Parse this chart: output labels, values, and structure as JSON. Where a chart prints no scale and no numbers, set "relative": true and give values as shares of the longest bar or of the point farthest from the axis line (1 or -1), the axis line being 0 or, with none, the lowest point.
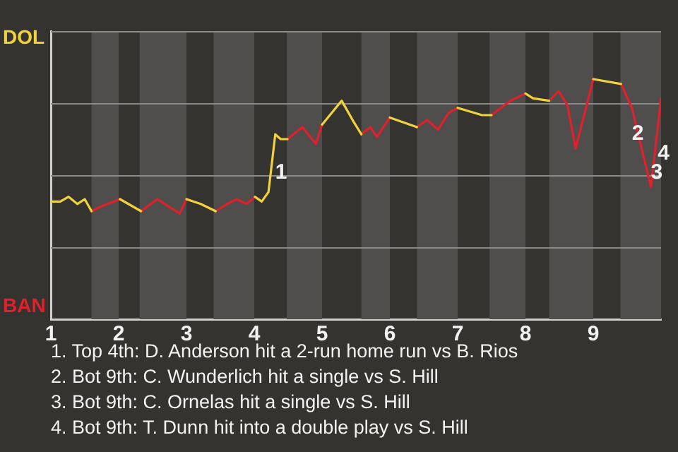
{
  "chart_data": {
    "type": "line",
    "relative": true,
    "xlim": [
      1,
      10
    ],
    "xticks": [
      1,
      2,
      3,
      4,
      5,
      6,
      7,
      8,
      9
    ],
    "grid": "y",
    "legend": "left",
    "marker": "none",
    "series": [
      {
        "name": "DOL",
        "color": "#f0d23c",
        "x": [
          1.0,
          1.14,
          1.26,
          1.39,
          1.5,
          1.6,
          1.8,
          2.02,
          2.33,
          2.6,
          3.0,
          3.21,
          3.43,
          3.7,
          4.01,
          4.11,
          4.21,
          4.31,
          4.39,
          4.49,
          4.7,
          5.0,
          5.29,
          5.47,
          5.58,
          5.8,
          6.0,
          6.4,
          6.7,
          7.0,
          7.36,
          7.5,
          7.7,
          8.0,
          8.11,
          8.35,
          8.6,
          9.0,
          9.41
        ],
        "values": [
          0.49,
          0.49,
          0.51,
          0.48,
          0.5,
          0.45,
          null,
          0.5,
          0.45,
          null,
          0.5,
          0.48,
          0.45,
          null,
          0.51,
          0.49,
          0.53,
          0.77,
          0.75,
          0.75,
          null,
          0.81,
          0.91,
          0.82,
          0.77,
          null,
          0.84,
          0.8,
          null,
          0.88,
          0.85,
          0.85,
          null,
          0.94,
          0.92,
          0.91,
          null,
          1,
          0.98
        ]
      },
      {
        "name": "BAN",
        "color": "#e0202a",
        "x": [
          1.6,
          1.74,
          2.02,
          2.2,
          2.33,
          2.57,
          2.9,
          3.0,
          3.3,
          3.43,
          3.6,
          3.74,
          3.89,
          4.01,
          4.3,
          4.49,
          4.71,
          4.91,
          5.0,
          5.3,
          5.58,
          5.71,
          5.81,
          6.0,
          6.2,
          6.4,
          6.55,
          6.71,
          6.87,
          7.0,
          7.2,
          7.5,
          7.78,
          8.0,
          8.2,
          8.35,
          8.49,
          8.62,
          8.74,
          9.0,
          9.2,
          9.41,
          9.57,
          9.85,
          10.0
        ],
        "values": [
          0.45,
          0.47,
          0.5,
          null,
          0.45,
          0.5,
          0.44,
          0.5,
          null,
          0.45,
          0.48,
          0.5,
          0.48,
          0.51,
          null,
          0.75,
          0.8,
          0.73,
          0.81,
          null,
          0.77,
          0.8,
          0.76,
          0.84,
          null,
          0.8,
          0.83,
          0.79,
          0.86,
          0.88,
          null,
          0.85,
          0.91,
          0.94,
          null,
          0.91,
          0.95,
          0.89,
          0.71,
          1,
          null,
          0.98,
          0.88,
          0.55,
          0.92
        ]
      }
    ],
    "bands": [
      {
        "axis": "x",
        "from": 1.6,
        "to": 2,
        "color": "#4f4e4c"
      },
      {
        "axis": "x",
        "from": 2.31,
        "to": 3,
        "color": "#4f4e4c"
      },
      {
        "axis": "x",
        "from": 3.4,
        "to": 4,
        "color": "#4f4e4c"
      },
      {
        "axis": "x",
        "from": 4.48,
        "to": 5,
        "color": "#4f4e4c"
      },
      {
        "axis": "x",
        "from": 5.58,
        "to": 6,
        "color": "#4f4e4c"
      },
      {
        "axis": "x",
        "from": 6.4,
        "to": 7,
        "color": "#4f4e4c"
      },
      {
        "axis": "x",
        "from": 7.47,
        "to": 8,
        "color": "#4f4e4c"
      },
      {
        "axis": "x",
        "from": 8.35,
        "to": 9,
        "color": "#4f4e4c"
      },
      {
        "axis": "x",
        "from": 9.4,
        "to": 10,
        "color": "#4f4e4c"
      }
    ],
    "annotations": [
      {
        "text": "1",
        "x": 4.31,
        "y": 0.61
      },
      {
        "text": "2",
        "x": 9.57,
        "y": 0.77
      },
      {
        "text": "3",
        "x": 9.85,
        "y": 0.61
      },
      {
        "text": "4",
        "x": 9.95,
        "y": 0.69
      },
      "1. Top 4th: D. Anderson hit a 2-run home run vs B. Rios",
      "2. Bot 9th: C. Wunderlich hit a single vs S. Hill",
      "3. Bot 9th: C. Ornelas hit a single vs S. Hill",
      "4. Bot 9th: T. Dunn hit into a double play vs S. Hill"
    ]
  }
}
